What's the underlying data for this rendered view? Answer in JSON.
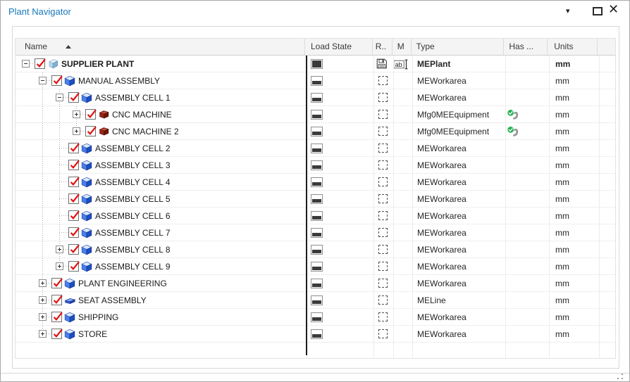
{
  "window": {
    "title": "Plant Navigator",
    "controls": {
      "menu_caret": "▾",
      "close_glyph": "✕"
    }
  },
  "table": {
    "columns": [
      {
        "label": "Name",
        "sort": "asc"
      },
      {
        "label": "Load State"
      },
      {
        "label": "R.."
      },
      {
        "label": "M"
      },
      {
        "label": "Type"
      },
      {
        "label": "Has ..."
      },
      {
        "label": "Units"
      },
      {
        "label": ""
      }
    ],
    "rows": [
      {
        "name": "SUPPLIER PLANT",
        "level": 0,
        "expander": "expanded",
        "last_sibling": true,
        "guide_lines": [],
        "checked": true,
        "name_icon": "plant-icon",
        "bold": true,
        "load_state_icon": "load-full-icon",
        "r_icon": "saved-icon",
        "m_icon": "rename-icon",
        "type": "MEPlant",
        "has_icon": "",
        "units": "mm"
      },
      {
        "name": "MANUAL ASSEMBLY",
        "level": 1,
        "expander": "expanded",
        "last_sibling": false,
        "guide_lines": [],
        "checked": true,
        "name_icon": "workarea-cube-icon",
        "bold": false,
        "load_state_icon": "load-partial-icon",
        "r_icon": "not-loaded-dashed-icon",
        "m_icon": "",
        "type": "MEWorkarea",
        "has_icon": "",
        "units": "mm"
      },
      {
        "name": "ASSEMBLY CELL 1",
        "level": 2,
        "expander": "expanded",
        "last_sibling": false,
        "guide_lines": [
          1
        ],
        "checked": true,
        "name_icon": "workarea-cube-icon",
        "bold": false,
        "load_state_icon": "load-partial-icon",
        "r_icon": "not-loaded-dashed-icon",
        "m_icon": "",
        "type": "MEWorkarea",
        "has_icon": "",
        "units": "mm"
      },
      {
        "name": "CNC MACHINE",
        "level": 3,
        "expander": "collapsed",
        "last_sibling": false,
        "guide_lines": [
          1,
          2
        ],
        "checked": true,
        "name_icon": "equipment-icon",
        "bold": false,
        "load_state_icon": "load-partial-icon",
        "r_icon": "not-loaded-dashed-icon",
        "m_icon": "",
        "type": "Mfg0MEEquipment",
        "has_icon": "wrench-check-icon",
        "units": "mm"
      },
      {
        "name": "CNC MACHINE 2",
        "level": 3,
        "expander": "collapsed",
        "last_sibling": true,
        "guide_lines": [
          1,
          2
        ],
        "checked": true,
        "name_icon": "equipment-icon",
        "bold": false,
        "load_state_icon": "load-partial-icon",
        "r_icon": "not-loaded-dashed-icon",
        "m_icon": "",
        "type": "Mfg0MEEquipment",
        "has_icon": "wrench-check-icon",
        "units": "mm"
      },
      {
        "name": "ASSEMBLY CELL 2",
        "level": 2,
        "expander": "",
        "last_sibling": false,
        "guide_lines": [
          1
        ],
        "checked": true,
        "name_icon": "workarea-cube-icon",
        "bold": false,
        "load_state_icon": "load-partial-icon",
        "r_icon": "not-loaded-dashed-icon",
        "m_icon": "",
        "type": "MEWorkarea",
        "has_icon": "",
        "units": "mm"
      },
      {
        "name": "ASSEMBLY CELL 3",
        "level": 2,
        "expander": "",
        "last_sibling": false,
        "guide_lines": [
          1
        ],
        "checked": true,
        "name_icon": "workarea-cube-icon",
        "bold": false,
        "load_state_icon": "load-partial-icon",
        "r_icon": "not-loaded-dashed-icon",
        "m_icon": "",
        "type": "MEWorkarea",
        "has_icon": "",
        "units": "mm"
      },
      {
        "name": "ASSEMBLY CELL 4",
        "level": 2,
        "expander": "",
        "last_sibling": false,
        "guide_lines": [
          1
        ],
        "checked": true,
        "name_icon": "workarea-cube-icon",
        "bold": false,
        "load_state_icon": "load-partial-icon",
        "r_icon": "not-loaded-dashed-icon",
        "m_icon": "",
        "type": "MEWorkarea",
        "has_icon": "",
        "units": "mm"
      },
      {
        "name": "ASSEMBLY CELL 5",
        "level": 2,
        "expander": "",
        "last_sibling": false,
        "guide_lines": [
          1
        ],
        "checked": true,
        "name_icon": "workarea-cube-icon",
        "bold": false,
        "load_state_icon": "load-partial-icon",
        "r_icon": "not-loaded-dashed-icon",
        "m_icon": "",
        "type": "MEWorkarea",
        "has_icon": "",
        "units": "mm"
      },
      {
        "name": "ASSEMBLY CELL 6",
        "level": 2,
        "expander": "",
        "last_sibling": false,
        "guide_lines": [
          1
        ],
        "checked": true,
        "name_icon": "workarea-cube-icon",
        "bold": false,
        "load_state_icon": "load-partial-icon",
        "r_icon": "not-loaded-dashed-icon",
        "m_icon": "",
        "type": "MEWorkarea",
        "has_icon": "",
        "units": "mm"
      },
      {
        "name": "ASSEMBLY CELL 7",
        "level": 2,
        "expander": "",
        "last_sibling": false,
        "guide_lines": [
          1
        ],
        "checked": true,
        "name_icon": "workarea-cube-icon",
        "bold": false,
        "load_state_icon": "load-partial-icon",
        "r_icon": "not-loaded-dashed-icon",
        "m_icon": "",
        "type": "MEWorkarea",
        "has_icon": "",
        "units": "mm"
      },
      {
        "name": "ASSEMBLY CELL 8",
        "level": 2,
        "expander": "collapsed",
        "last_sibling": false,
        "guide_lines": [
          1
        ],
        "checked": true,
        "name_icon": "workarea-cube-icon",
        "bold": false,
        "load_state_icon": "load-partial-icon",
        "r_icon": "not-loaded-dashed-icon",
        "m_icon": "",
        "type": "MEWorkarea",
        "has_icon": "",
        "units": "mm"
      },
      {
        "name": "ASSEMBLY CELL 9",
        "level": 2,
        "expander": "collapsed",
        "last_sibling": true,
        "guide_lines": [
          1
        ],
        "checked": true,
        "name_icon": "workarea-cube-icon",
        "bold": false,
        "load_state_icon": "load-partial-icon",
        "r_icon": "not-loaded-dashed-icon",
        "m_icon": "",
        "type": "MEWorkarea",
        "has_icon": "",
        "units": "mm"
      },
      {
        "name": "PLANT ENGINEERING",
        "level": 1,
        "expander": "collapsed",
        "last_sibling": false,
        "guide_lines": [],
        "checked": true,
        "name_icon": "workarea-cube-icon",
        "bold": false,
        "load_state_icon": "load-partial-icon",
        "r_icon": "not-loaded-dashed-icon",
        "m_icon": "",
        "type": "MEWorkarea",
        "has_icon": "",
        "units": "mm"
      },
      {
        "name": "SEAT ASSEMBLY",
        "level": 1,
        "expander": "collapsed",
        "last_sibling": false,
        "guide_lines": [],
        "checked": true,
        "name_icon": "line-icon",
        "bold": false,
        "load_state_icon": "load-partial-icon",
        "r_icon": "not-loaded-dashed-icon",
        "m_icon": "",
        "type": "MELine",
        "has_icon": "",
        "units": "mm"
      },
      {
        "name": "SHIPPING",
        "level": 1,
        "expander": "collapsed",
        "last_sibling": false,
        "guide_lines": [],
        "checked": true,
        "name_icon": "workarea-cube-icon",
        "bold": false,
        "load_state_icon": "load-partial-icon",
        "r_icon": "not-loaded-dashed-icon",
        "m_icon": "",
        "type": "MEWorkarea",
        "has_icon": "",
        "units": "mm"
      },
      {
        "name": "STORE",
        "level": 1,
        "expander": "collapsed",
        "last_sibling": true,
        "guide_lines": [],
        "checked": true,
        "name_icon": "workarea-cube-icon",
        "bold": false,
        "load_state_icon": "load-partial-icon",
        "r_icon": "not-loaded-dashed-icon",
        "m_icon": "",
        "type": "MEWorkarea",
        "has_icon": "",
        "units": "mm"
      }
    ]
  }
}
